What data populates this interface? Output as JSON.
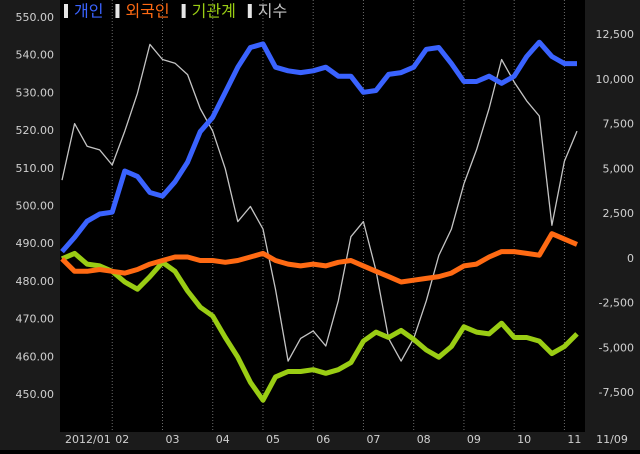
{
  "chart_data": {
    "type": "line",
    "x": [
      1,
      1.25,
      1.5,
      1.75,
      2,
      2.25,
      2.5,
      2.75,
      3,
      3.25,
      3.5,
      3.75,
      4,
      4.25,
      4.5,
      4.75,
      5,
      5.25,
      5.5,
      5.75,
      6,
      6.25,
      6.5,
      6.75,
      7,
      7.25,
      7.5,
      7.75,
      8,
      8.25,
      8.5,
      8.75,
      9,
      9.25,
      9.5,
      9.75,
      10,
      10.25,
      10.5,
      10.75,
      11,
      11.25
    ],
    "xlim": [
      1,
      11.35
    ],
    "xticks": [
      {
        "value": 1,
        "label": "2012/01"
      },
      {
        "value": 2,
        "label": "02"
      },
      {
        "value": 3,
        "label": "03"
      },
      {
        "value": 4,
        "label": "04"
      },
      {
        "value": 5,
        "label": "05"
      },
      {
        "value": 6,
        "label": "06"
      },
      {
        "value": 7,
        "label": "07"
      },
      {
        "value": 8,
        "label": "08"
      },
      {
        "value": 9,
        "label": "09"
      },
      {
        "value": 10,
        "label": "10"
      },
      {
        "value": 11,
        "label": "11"
      }
    ],
    "date_label": "11/09",
    "ylim": [
      450,
      550
    ],
    "yticks": [
      {
        "value": 450,
        "label": "450.00"
      },
      {
        "value": 460,
        "label": "460.00"
      },
      {
        "value": 470,
        "label": "470.00"
      },
      {
        "value": 480,
        "label": "480.00"
      },
      {
        "value": 490,
        "label": "490.00"
      },
      {
        "value": 500,
        "label": "500.00"
      },
      {
        "value": 510,
        "label": "510.00"
      },
      {
        "value": 520,
        "label": "520.00"
      },
      {
        "value": 530,
        "label": "530.00"
      },
      {
        "value": 540,
        "label": "540.00"
      },
      {
        "value": 550,
        "label": "550.00"
      }
    ],
    "y2lim": [
      -7500,
      12500
    ],
    "y2ticks": [
      {
        "value": -7500,
        "label": "-7,500"
      },
      {
        "value": -5000,
        "label": "-5,000"
      },
      {
        "value": -2500,
        "label": "-2,500"
      },
      0,
      {
        "value": 2500,
        "label": "2,500"
      },
      {
        "value": 5000,
        "label": "5,000"
      },
      {
        "value": 7500,
        "label": "7,500"
      },
      {
        "value": 10000,
        "label": "10,000"
      },
      {
        "value": 12500,
        "label": "12,500"
      }
    ],
    "grid": true,
    "series": [
      {
        "name": "개인",
        "color": "#3a63ff",
        "axis": "y2",
        "values": [
          400,
          1200,
          2100,
          2500,
          2600,
          4900,
          4600,
          3700,
          3500,
          4300,
          5400,
          7100,
          7900,
          9300,
          10700,
          11800,
          12000,
          10700,
          10500,
          10400,
          10500,
          10700,
          10200,
          10200,
          9300,
          9400,
          10300,
          10400,
          10700,
          11700,
          11800,
          10900,
          9900,
          9900,
          10200,
          9800,
          10200,
          11300,
          12100,
          11300,
          10900,
          10900
        ]
      },
      {
        "name": "외국인",
        "color": "#ff6a13",
        "axis": "y2",
        "values": [
          0,
          -700,
          -700,
          -600,
          -700,
          -800,
          -600,
          -300,
          -100,
          100,
          100,
          -100,
          -100,
          -200,
          -100,
          100,
          300,
          -100,
          -300,
          -400,
          -300,
          -400,
          -200,
          -100,
          -400,
          -700,
          -1000,
          -1300,
          -1200,
          -1100,
          -1000,
          -800,
          -400,
          -300,
          100,
          400,
          400,
          300,
          200,
          1400,
          1100,
          800
        ]
      },
      {
        "name": "기관계",
        "color": "#9acd14",
        "axis": "y2",
        "values": [
          0,
          300,
          -300,
          -400,
          -700,
          -1300,
          -1700,
          -1000,
          -200,
          -700,
          -1800,
          -2700,
          -3200,
          -4400,
          -5500,
          -6900,
          -7900,
          -6600,
          -6300,
          -6300,
          -6200,
          -6400,
          -6200,
          -5800,
          -4600,
          -4100,
          -4400,
          -4000,
          -4500,
          -5100,
          -5500,
          -4900,
          -3800,
          -4100,
          -4200,
          -3600,
          -4400,
          -4400,
          -4600,
          -5300,
          -4900,
          -4200
        ]
      },
      {
        "name": "지수",
        "color": "#c4c4c4",
        "values": [
          507,
          522,
          516,
          515,
          511,
          520,
          530,
          543,
          539,
          538,
          535,
          526,
          520,
          510,
          496,
          500,
          494,
          478,
          459,
          465,
          467,
          463,
          475,
          492,
          496,
          483,
          465,
          459,
          465,
          475,
          487,
          494,
          506,
          515,
          526,
          539,
          533,
          528,
          524,
          495,
          512,
          520
        ]
      }
    ]
  }
}
